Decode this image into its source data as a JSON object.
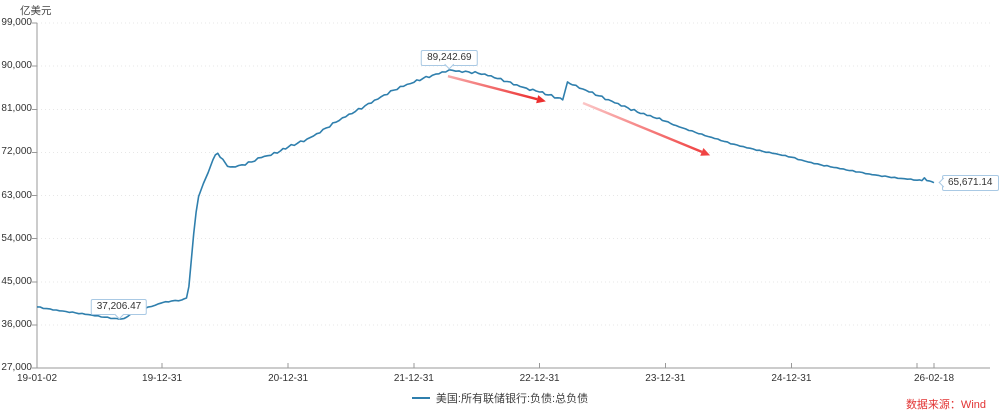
{
  "source": {
    "text": "数据来源：Wind"
  },
  "colors": {
    "line": "#2f7fad",
    "callout_border": "#a9c9e4",
    "grid": "#e7e7e7",
    "axis": "#999999",
    "text": "#333333",
    "source_red": "#e23333",
    "arrow_red": "#ec3232",
    "arrow_red_light": "#f8b0b0"
  },
  "chart_data": {
    "type": "line",
    "title": "",
    "ylabel": "亿美元",
    "xlabel": "",
    "ylim": [
      27000,
      99000
    ],
    "y_tick_step": 9000,
    "grid": "horizontal dotted",
    "legend_position": "bottom-center",
    "y_ticks": [
      {
        "v": 27000,
        "label": "27,000"
      },
      {
        "v": 36000,
        "label": "36,000"
      },
      {
        "v": 45000,
        "label": "45,000"
      },
      {
        "v": 54000,
        "label": "54,000"
      },
      {
        "v": 63000,
        "label": "63,000"
      },
      {
        "v": 72000,
        "label": "72,000"
      },
      {
        "v": 81000,
        "label": "81,000"
      },
      {
        "v": 90000,
        "label": "90,000"
      },
      {
        "v": 99000,
        "label": "99,000"
      }
    ],
    "x_ticks": [
      {
        "date": "2019-01-02",
        "label": "19-01-02"
      },
      {
        "date": "2019-12-31",
        "label": "19-12-31"
      },
      {
        "date": "2020-12-31",
        "label": "20-12-31"
      },
      {
        "date": "2021-12-31",
        "label": "21-12-31"
      },
      {
        "date": "2022-12-31",
        "label": "22-12-31"
      },
      {
        "date": "2023-12-31",
        "label": "23-12-31"
      },
      {
        "date": "2024-12-31",
        "label": "24-12-31"
      },
      {
        "date": "2025-12-31",
        "label": ""
      },
      {
        "date": "2026-02-18",
        "label": "26-02-18"
      }
    ],
    "x_domain": [
      "2019-01-02",
      "2026-02-18"
    ],
    "series": [
      {
        "name": "美国:所有联储银行:负债:总负债",
        "color": "#2f7fad",
        "points": [
          [
            "2019-01-02",
            39750
          ],
          [
            "2019-01-30",
            39400
          ],
          [
            "2019-02-27",
            39100
          ],
          [
            "2019-03-27",
            38800
          ],
          [
            "2019-04-24",
            38500
          ],
          [
            "2019-05-22",
            38200
          ],
          [
            "2019-06-19",
            37900
          ],
          [
            "2019-07-17",
            37600
          ],
          [
            "2019-08-14",
            37350
          ],
          [
            "2019-08-28",
            37206.47
          ],
          [
            "2019-09-11",
            37300
          ],
          [
            "2019-09-25",
            37900
          ],
          [
            "2019-10-09",
            38500
          ],
          [
            "2019-10-30",
            39200
          ],
          [
            "2019-11-20",
            39700
          ],
          [
            "2019-12-11",
            40100
          ],
          [
            "2019-12-31",
            40600
          ],
          [
            "2020-01-29",
            41000
          ],
          [
            "2020-02-26",
            41200
          ],
          [
            "2020-03-11",
            41600
          ],
          [
            "2020-03-18",
            44000
          ],
          [
            "2020-03-25",
            49500
          ],
          [
            "2020-04-01",
            55000
          ],
          [
            "2020-04-08",
            59500
          ],
          [
            "2020-04-15",
            62800
          ],
          [
            "2020-04-29",
            65500
          ],
          [
            "2020-05-13",
            67800
          ],
          [
            "2020-05-27",
            70500
          ],
          [
            "2020-06-03",
            71500
          ],
          [
            "2020-06-10",
            71800
          ],
          [
            "2020-06-24",
            70600
          ],
          [
            "2020-07-08",
            69100
          ],
          [
            "2020-07-22",
            69000
          ],
          [
            "2020-08-19",
            69400
          ],
          [
            "2020-09-16",
            70000
          ],
          [
            "2020-10-14",
            70900
          ],
          [
            "2020-11-11",
            71400
          ],
          [
            "2020-12-09",
            72300
          ],
          [
            "2020-12-31",
            73100
          ],
          [
            "2021-01-27",
            73900
          ],
          [
            "2021-02-24",
            74800
          ],
          [
            "2021-03-24",
            75900
          ],
          [
            "2021-04-21",
            77100
          ],
          [
            "2021-05-19",
            78300
          ],
          [
            "2021-06-16",
            79400
          ],
          [
            "2021-07-14",
            80500
          ],
          [
            "2021-08-11",
            81700
          ],
          [
            "2021-09-08",
            82900
          ],
          [
            "2021-10-06",
            84000
          ],
          [
            "2021-11-03",
            85000
          ],
          [
            "2021-12-01",
            85800
          ],
          [
            "2021-12-31",
            86600
          ],
          [
            "2022-01-26",
            87400
          ],
          [
            "2022-02-23",
            88100
          ],
          [
            "2022-03-23",
            88800
          ],
          [
            "2022-04-13",
            89242.69
          ],
          [
            "2022-05-11",
            89000
          ],
          [
            "2022-06-08",
            88800
          ],
          [
            "2022-07-06",
            88500
          ],
          [
            "2022-08-03",
            88000
          ],
          [
            "2022-08-31",
            87400
          ],
          [
            "2022-09-28",
            86800
          ],
          [
            "2022-10-26",
            86100
          ],
          [
            "2022-11-23",
            85400
          ],
          [
            "2022-12-21",
            84800
          ],
          [
            "2022-12-31",
            84600
          ],
          [
            "2023-01-25",
            84000
          ],
          [
            "2023-02-22",
            83400
          ],
          [
            "2023-03-08",
            82950
          ],
          [
            "2023-03-22",
            86700
          ],
          [
            "2023-04-05",
            86100
          ],
          [
            "2023-04-26",
            85400
          ],
          [
            "2023-05-24",
            84600
          ],
          [
            "2023-06-21",
            83800
          ],
          [
            "2023-07-19",
            83000
          ],
          [
            "2023-08-16",
            82200
          ],
          [
            "2023-09-13",
            81300
          ],
          [
            "2023-10-11",
            80400
          ],
          [
            "2023-11-08",
            79700
          ],
          [
            "2023-12-06",
            79100
          ],
          [
            "2023-12-31",
            78500
          ],
          [
            "2024-01-31",
            77600
          ],
          [
            "2024-02-28",
            76900
          ],
          [
            "2024-03-27",
            76200
          ],
          [
            "2024-04-24",
            75500
          ],
          [
            "2024-05-22",
            74900
          ],
          [
            "2024-06-19",
            74300
          ],
          [
            "2024-07-17",
            73700
          ],
          [
            "2024-08-14",
            73200
          ],
          [
            "2024-09-11",
            72700
          ],
          [
            "2024-10-09",
            72200
          ],
          [
            "2024-11-06",
            71800
          ],
          [
            "2024-12-04",
            71400
          ],
          [
            "2024-12-31",
            71000
          ],
          [
            "2025-01-29",
            70400
          ],
          [
            "2025-02-26",
            69900
          ],
          [
            "2025-03-26",
            69400
          ],
          [
            "2025-04-23",
            69000
          ],
          [
            "2025-05-21",
            68600
          ],
          [
            "2025-06-18",
            68200
          ],
          [
            "2025-07-16",
            67900
          ],
          [
            "2025-08-13",
            67500
          ],
          [
            "2025-09-10",
            67200
          ],
          [
            "2025-10-08",
            66900
          ],
          [
            "2025-11-05",
            66600
          ],
          [
            "2025-12-03",
            66400
          ],
          [
            "2025-12-31",
            66200
          ],
          [
            "2026-01-14",
            66100
          ],
          [
            "2026-01-21",
            66700
          ],
          [
            "2026-01-28",
            66100
          ],
          [
            "2026-02-11",
            65900
          ],
          [
            "2026-02-18",
            65671.14
          ]
        ]
      }
    ],
    "annotations": {
      "callouts": [
        {
          "text": "37,206.47",
          "date": "2019-08-28",
          "value": 37206.47,
          "pointer": "bottom"
        },
        {
          "text": "89,242.69",
          "date": "2022-04-13",
          "value": 89242.69,
          "pointer": "bottom"
        },
        {
          "text": "65,671.14",
          "date": "2026-02-18",
          "value": 65671.14,
          "pointer": "left"
        }
      ],
      "arrows": [
        {
          "from": {
            "date": "2022-04-09",
            "value": 87900
          },
          "to": {
            "date": "2022-12-24",
            "value": 83100
          },
          "color_from": "#f7a8a8",
          "color_to": "#ec2f2f"
        },
        {
          "from": {
            "date": "2023-05-06",
            "value": 82300
          },
          "to": {
            "date": "2024-04-15",
            "value": 72100
          },
          "color_from": "#fbc6c6",
          "color_to": "#f04343"
        }
      ]
    }
  }
}
